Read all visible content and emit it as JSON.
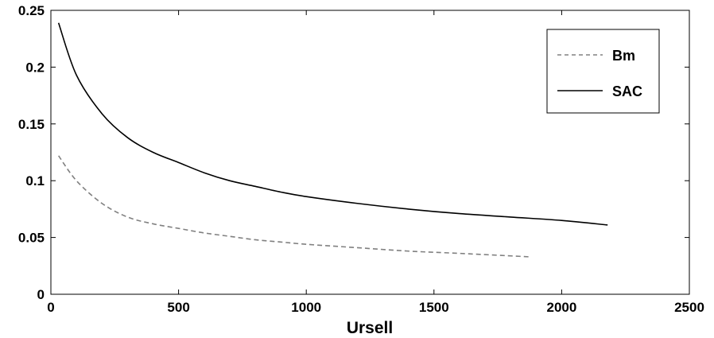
{
  "chart_data": {
    "type": "line",
    "title": "",
    "xlabel": "Ursell",
    "ylabel": "",
    "xlim": [
      0,
      2500
    ],
    "ylim": [
      0,
      0.25
    ],
    "xticks": [
      0,
      500,
      1000,
      1500,
      2000,
      2500
    ],
    "xtick_labels": [
      "0",
      "500",
      "1000",
      "1500",
      "2000",
      "2500"
    ],
    "yticks": [
      0,
      0.05,
      0.1,
      0.15,
      0.2,
      0.25
    ],
    "ytick_labels": [
      "0",
      "0.05",
      "0.1",
      "0.15",
      "0.2",
      "0.25"
    ],
    "grid": false,
    "legend_position": "top-right",
    "series": [
      {
        "name": "Bm",
        "style": "dashed",
        "color": "#808080",
        "x": [
          30,
          100,
          200,
          300,
          400,
          500,
          600,
          700,
          800,
          900,
          1000,
          1200,
          1400,
          1600,
          1870
        ],
        "y": [
          0.122,
          0.1,
          0.08,
          0.068,
          0.062,
          0.058,
          0.054,
          0.051,
          0.048,
          0.046,
          0.044,
          0.041,
          0.038,
          0.036,
          0.033
        ]
      },
      {
        "name": "SAC",
        "style": "solid",
        "color": "#000000",
        "x": [
          30,
          100,
          200,
          300,
          400,
          500,
          600,
          700,
          800,
          900,
          1000,
          1200,
          1400,
          1600,
          1800,
          2000,
          2180
        ],
        "y": [
          0.239,
          0.193,
          0.159,
          0.138,
          0.125,
          0.116,
          0.107,
          0.1,
          0.095,
          0.09,
          0.086,
          0.08,
          0.075,
          0.071,
          0.068,
          0.065,
          0.061
        ]
      }
    ]
  }
}
